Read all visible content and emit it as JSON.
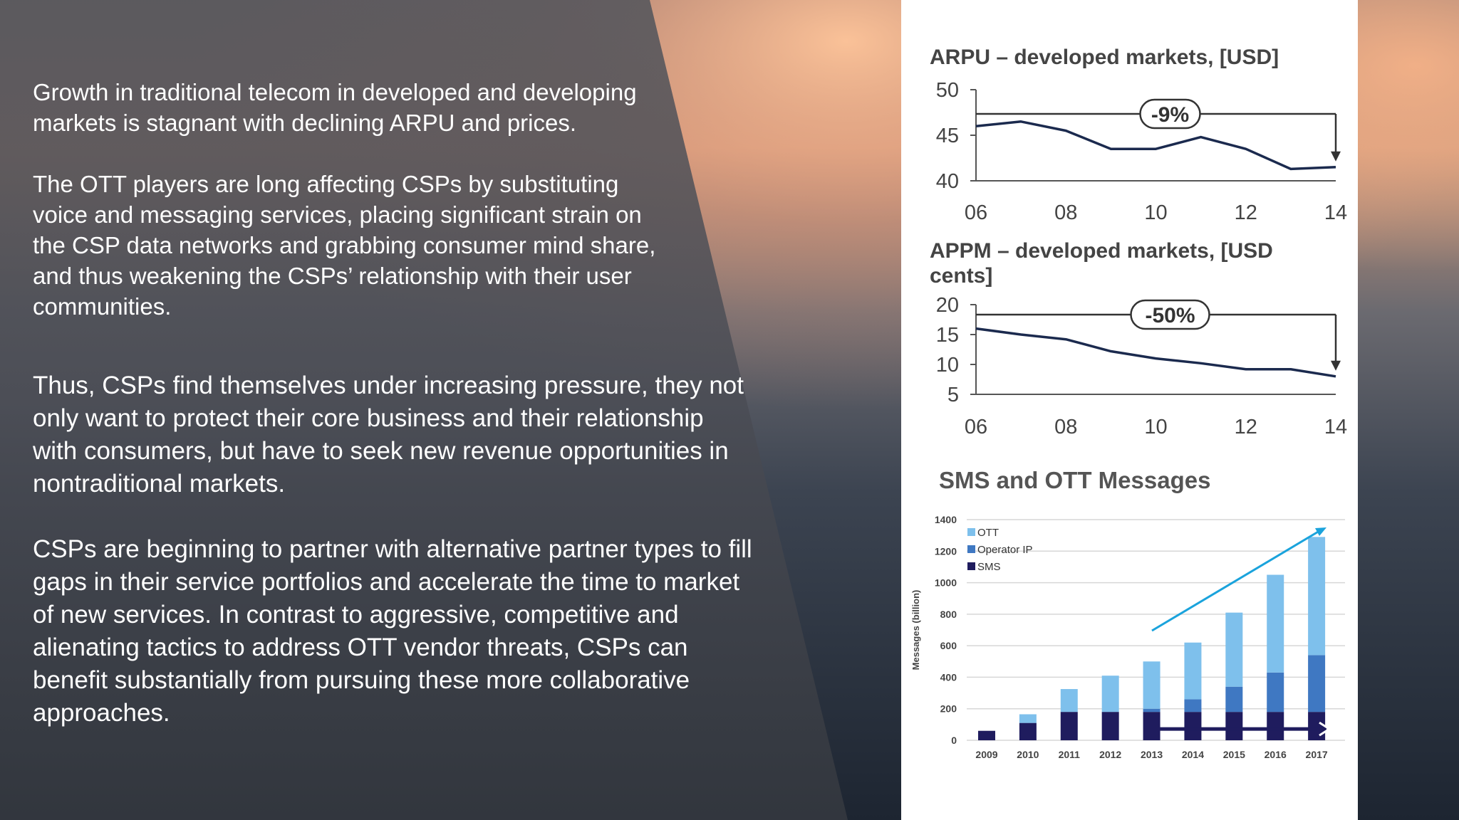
{
  "text_panel": {
    "paragraphs": [
      "Growth in traditional telecom in developed and developing markets is stagnant with declining ARPU and prices.",
      "The OTT players are long affecting CSPs by substituting voice and messaging services, placing significant strain on the CSP data networks and grabbing consumer mind share, and thus weakening the CSPs’ relationship with their user communities.",
      "Thus, CSPs find themselves under increasing pressure, they not only want to protect their core business and their relationship with consumers, but have to seek new revenue opportunities in nontraditional markets.",
      "CSPs are beginning to partner with alternative partner types to fill gaps in their service portfolios and accelerate the time to market of new services. In contrast to aggressive, competitive and alienating tactics to address OTT vendor threats, CSPs can benefit substantially from pursuing these more collaborative approaches."
    ]
  },
  "colors": {
    "line": "#1b2a4e",
    "axis": "#555555",
    "ott": "#7ec0ec",
    "operator_ip": "#3f78c2",
    "sms": "#1f1c5e",
    "growth_arrow": "#1aa3dc",
    "flat_arrow": "#1f1c5e"
  },
  "chart_data": [
    {
      "type": "line",
      "title": "ARPU – developed markets, [USD]",
      "x": [
        6,
        7,
        8,
        9,
        10,
        11,
        12,
        13,
        14
      ],
      "y": [
        46,
        46.5,
        45.5,
        43.5,
        43.5,
        44.8,
        43.5,
        41.3,
        41.5
      ],
      "x_tick_labels": [
        "06",
        "08",
        "10",
        "12",
        "14"
      ],
      "y_ticks": [
        40,
        45,
        50
      ],
      "xlim": [
        6,
        14
      ],
      "ylim": [
        40,
        50
      ],
      "annotation": "-9%"
    },
    {
      "type": "line",
      "title": "APPM – developed markets, [USD cents]",
      "x": [
        6,
        7,
        8,
        9,
        10,
        11,
        12,
        13,
        14
      ],
      "y": [
        16,
        15,
        14.2,
        12.2,
        11,
        10.2,
        9.2,
        9.2,
        8
      ],
      "x_tick_labels": [
        "06",
        "08",
        "10",
        "12",
        "14"
      ],
      "y_ticks": [
        5,
        10,
        15,
        20
      ],
      "xlim": [
        6,
        14
      ],
      "ylim": [
        5,
        20
      ],
      "annotation": "-50%"
    },
    {
      "type": "bar",
      "title": "SMS and OTT Messages",
      "ylabel": "Messages (billion)",
      "categories": [
        "2009",
        "2010",
        "2011",
        "2012",
        "2013",
        "2014",
        "2015",
        "2016",
        "2017"
      ],
      "y_ticks": [
        0,
        200,
        400,
        600,
        800,
        1000,
        1200,
        1400
      ],
      "ylim": [
        0,
        1400
      ],
      "stacked": true,
      "legend_position": "top-left",
      "series": [
        {
          "name": "SMS",
          "values": [
            60,
            110,
            180,
            180,
            180,
            180,
            180,
            180,
            180
          ]
        },
        {
          "name": "Operator IP",
          "values": [
            0,
            0,
            0,
            0,
            20,
            80,
            160,
            250,
            360
          ]
        },
        {
          "name": "OTT",
          "values": [
            0,
            55,
            145,
            230,
            300,
            360,
            470,
            620,
            750
          ]
        }
      ]
    }
  ]
}
